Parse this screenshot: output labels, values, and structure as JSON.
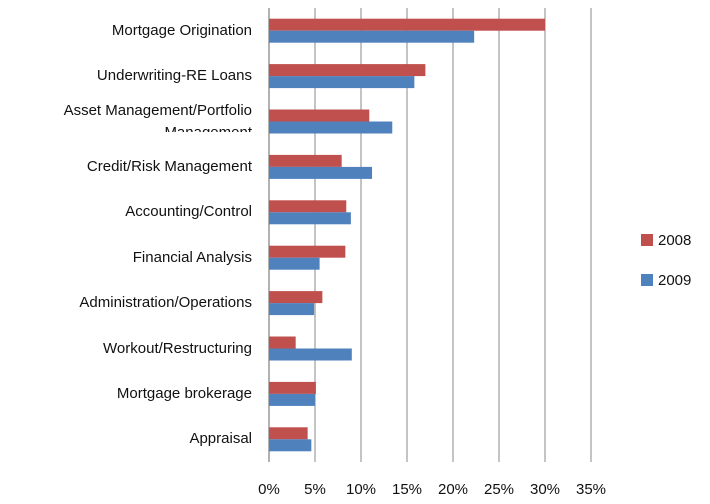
{
  "chart_data": {
    "type": "hbar",
    "categories": [
      "Mortgage Origination",
      "Underwriting-RE Loans",
      "Asset Management/Portfolio Management",
      "Credit/Risk Management",
      "Accounting/Control",
      "Financial Analysis",
      "Administration/Operations",
      "Workout/Restructuring",
      "Mortgage brokerage",
      "Appraisal"
    ],
    "series": [
      {
        "name": "2008",
        "color": "#c0504d",
        "values": [
          30,
          17,
          10.9,
          7.9,
          8.4,
          8.3,
          5.8,
          2.9,
          5.1,
          4.2
        ]
      },
      {
        "name": "2009",
        "color": "#4f81bd",
        "values": [
          22.3,
          15.8,
          13.4,
          11.2,
          8.9,
          5.5,
          4.9,
          9.0,
          5.0,
          4.6
        ]
      }
    ],
    "xlim": [
      0,
      35
    ],
    "xticks": [
      {
        "value": 0,
        "label": "0%"
      },
      {
        "value": 5,
        "label": "5%"
      },
      {
        "value": 10,
        "label": "10%"
      },
      {
        "value": 15,
        "label": "15%"
      },
      {
        "value": 20,
        "label": "20%"
      },
      {
        "value": 25,
        "label": "25%"
      },
      {
        "value": 30,
        "label": "30%"
      },
      {
        "value": 35,
        "label": "35%"
      }
    ],
    "grid": true,
    "legend": "right"
  }
}
